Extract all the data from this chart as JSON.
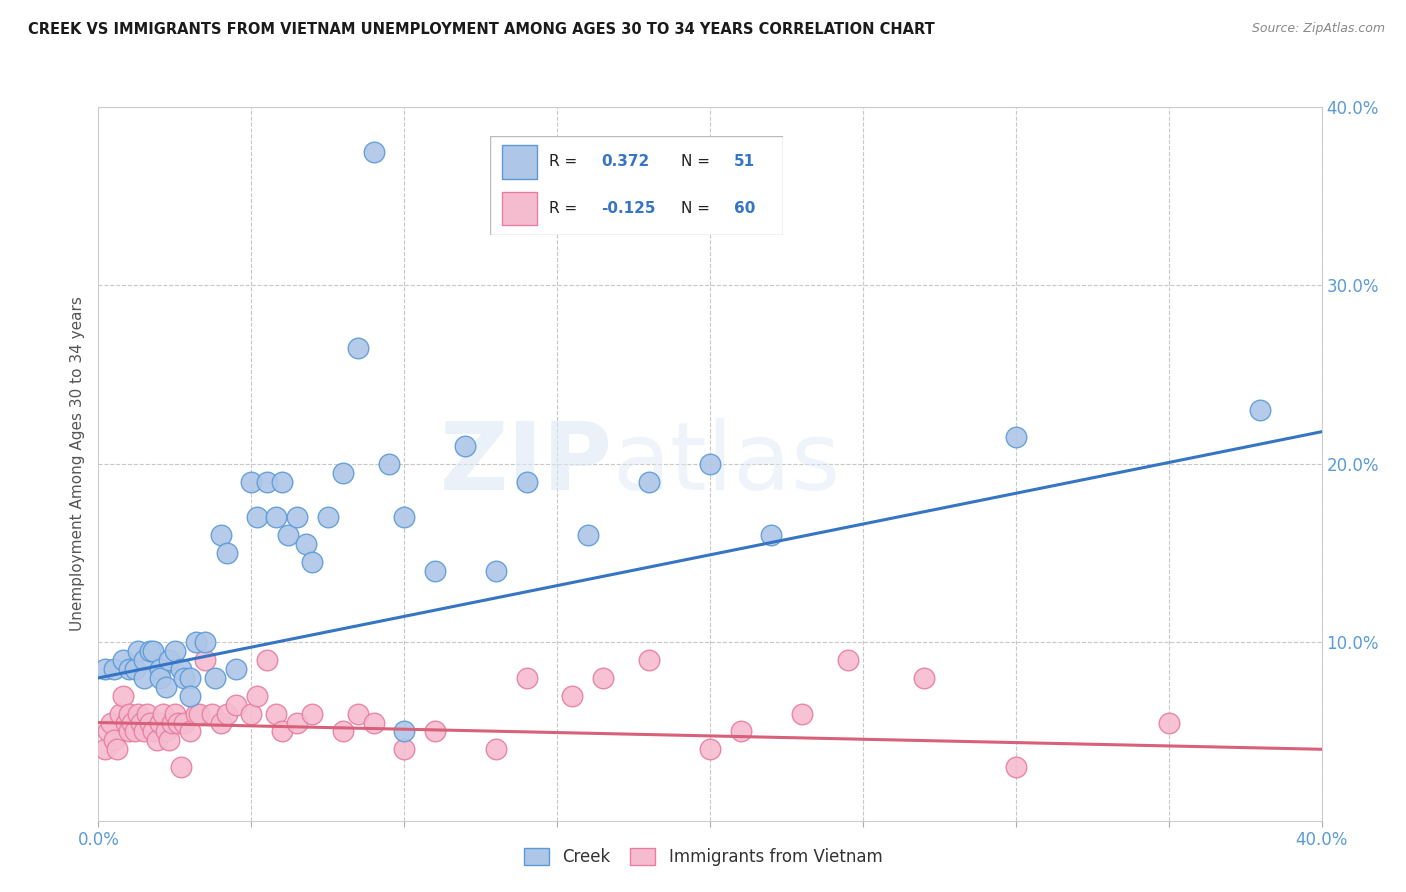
{
  "title": "CREEK VS IMMIGRANTS FROM VIETNAM UNEMPLOYMENT AMONG AGES 30 TO 34 YEARS CORRELATION CHART",
  "source": "Source: ZipAtlas.com",
  "ylabel": "Unemployment Among Ages 30 to 34 years",
  "xlim": [
    0.0,
    0.4
  ],
  "ylim": [
    0.0,
    0.4
  ],
  "creek_color": "#aec6e8",
  "creek_edge_color": "#5b9bd5",
  "vietnam_color": "#f5bcd0",
  "vietnam_edge_color": "#e87da0",
  "creek_line_color": "#3575c3",
  "vietnam_line_color": "#d9607a",
  "creek_R": 0.372,
  "creek_N": 51,
  "vietnam_R": -0.125,
  "vietnam_N": 60,
  "creek_line_x0": 0.0,
  "creek_line_y0": 0.08,
  "creek_line_x1": 0.4,
  "creek_line_y1": 0.218,
  "vietnam_line_x0": 0.0,
  "vietnam_line_y0": 0.055,
  "vietnam_line_x1": 0.4,
  "vietnam_line_y1": 0.04,
  "creek_x": [
    0.002,
    0.005,
    0.008,
    0.01,
    0.012,
    0.013,
    0.015,
    0.015,
    0.017,
    0.018,
    0.02,
    0.02,
    0.022,
    0.023,
    0.025,
    0.027,
    0.028,
    0.03,
    0.03,
    0.032,
    0.035,
    0.038,
    0.04,
    0.042,
    0.045,
    0.05,
    0.052,
    0.055,
    0.058,
    0.06,
    0.062,
    0.065,
    0.068,
    0.07,
    0.075,
    0.08,
    0.085,
    0.09,
    0.095,
    0.1,
    0.1,
    0.11,
    0.12,
    0.13,
    0.14,
    0.16,
    0.18,
    0.2,
    0.22,
    0.3,
    0.38
  ],
  "creek_y": [
    0.085,
    0.085,
    0.09,
    0.085,
    0.085,
    0.095,
    0.09,
    0.08,
    0.095,
    0.095,
    0.085,
    0.08,
    0.075,
    0.09,
    0.095,
    0.085,
    0.08,
    0.08,
    0.07,
    0.1,
    0.1,
    0.08,
    0.16,
    0.15,
    0.085,
    0.19,
    0.17,
    0.19,
    0.17,
    0.19,
    0.16,
    0.17,
    0.155,
    0.145,
    0.17,
    0.195,
    0.265,
    0.375,
    0.2,
    0.17,
    0.05,
    0.14,
    0.21,
    0.14,
    0.19,
    0.16,
    0.19,
    0.2,
    0.16,
    0.215,
    0.23
  ],
  "vietnam_x": [
    0.002,
    0.003,
    0.004,
    0.005,
    0.006,
    0.007,
    0.008,
    0.009,
    0.01,
    0.01,
    0.011,
    0.012,
    0.013,
    0.014,
    0.015,
    0.016,
    0.017,
    0.018,
    0.019,
    0.02,
    0.021,
    0.022,
    0.023,
    0.024,
    0.025,
    0.026,
    0.027,
    0.028,
    0.03,
    0.032,
    0.033,
    0.035,
    0.037,
    0.04,
    0.042,
    0.045,
    0.05,
    0.052,
    0.055,
    0.058,
    0.06,
    0.065,
    0.07,
    0.08,
    0.085,
    0.09,
    0.1,
    0.11,
    0.13,
    0.14,
    0.155,
    0.165,
    0.18,
    0.2,
    0.21,
    0.23,
    0.245,
    0.27,
    0.3,
    0.35
  ],
  "vietnam_y": [
    0.04,
    0.05,
    0.055,
    0.045,
    0.04,
    0.06,
    0.07,
    0.055,
    0.05,
    0.06,
    0.055,
    0.05,
    0.06,
    0.055,
    0.05,
    0.06,
    0.055,
    0.05,
    0.045,
    0.055,
    0.06,
    0.05,
    0.045,
    0.055,
    0.06,
    0.055,
    0.03,
    0.055,
    0.05,
    0.06,
    0.06,
    0.09,
    0.06,
    0.055,
    0.06,
    0.065,
    0.06,
    0.07,
    0.09,
    0.06,
    0.05,
    0.055,
    0.06,
    0.05,
    0.06,
    0.055,
    0.04,
    0.05,
    0.04,
    0.08,
    0.07,
    0.08,
    0.09,
    0.04,
    0.05,
    0.06,
    0.09,
    0.08,
    0.03,
    0.055
  ]
}
